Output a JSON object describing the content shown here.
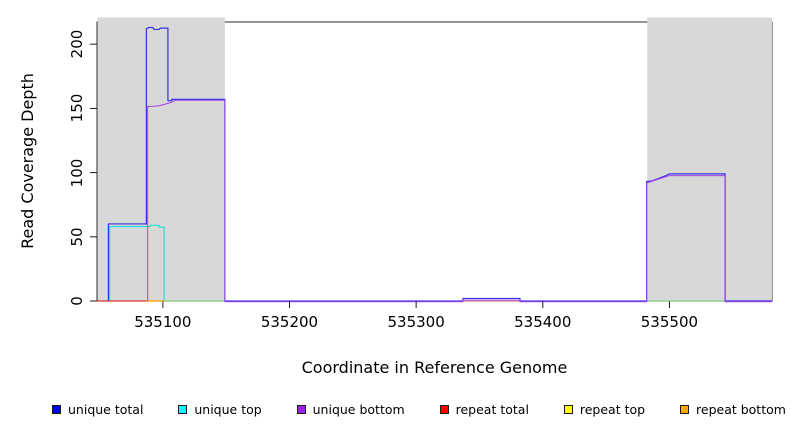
{
  "figure": {
    "x_axis_title": "Coordinate in Reference Genome",
    "y_axis_title": "Read Coverage Depth"
  },
  "chart_data": {
    "type": "line",
    "subtype": "step-coverage-profile",
    "title": "",
    "xlabel": "Coordinate in Reference Genome",
    "ylabel": "Read Coverage Depth",
    "xlim": [
      535048,
      535581
    ],
    "ylim": [
      0,
      220
    ],
    "x_ticks": [
      535100,
      535200,
      535300,
      535400,
      535500
    ],
    "y_ticks": [
      0,
      50,
      100,
      150,
      200
    ],
    "grid": false,
    "legend_position": "bottom",
    "highlight_regions": [
      {
        "from": 535048,
        "to": 535149,
        "color": "#d8d8d8"
      },
      {
        "from": 535482,
        "to": 535581,
        "color": "#d8d8d8"
      }
    ],
    "series": [
      {
        "name": "unique top",
        "color": "#17dede",
        "width": 1.1,
        "dy": 0,
        "z": 1,
        "points": [
          [
            535058,
            0
          ],
          [
            535058,
            58
          ],
          [
            535090,
            58
          ],
          [
            535090,
            59
          ],
          [
            535097,
            59
          ],
          [
            535097,
            57.5
          ],
          [
            535101,
            57.5
          ],
          [
            535101,
            0
          ],
          [
            535581,
            0
          ]
        ]
      },
      {
        "name": "repeat total",
        "color": "#ff0000",
        "depth": 0,
        "render": false,
        "points": [
          [
            535048,
            0
          ],
          [
            535581,
            0
          ]
        ]
      },
      {
        "name": "repeat top",
        "color": "#ffff00",
        "depth": 0,
        "render": false,
        "points": [
          [
            535048,
            0
          ],
          [
            535581,
            0
          ]
        ]
      },
      {
        "name": "repeat bottom",
        "color": "#ffa500",
        "depth": 0,
        "render": false,
        "points": [
          [
            535048,
            0
          ],
          [
            535581,
            0
          ]
        ]
      },
      {
        "name": "unique total",
        "color": "#3232e8",
        "width": 1.2,
        "dy": 0,
        "z": 3,
        "points": [
          [
            535057,
            0
          ],
          [
            535057,
            60
          ],
          [
            535087,
            60
          ],
          [
            535087,
            212
          ],
          [
            535089,
            213
          ],
          [
            535092,
            213
          ],
          [
            535093,
            211.5
          ],
          [
            535097,
            211.5
          ],
          [
            535098,
            212.5
          ],
          [
            535104,
            212.5
          ],
          [
            535104,
            156
          ],
          [
            535107,
            156
          ],
          [
            535107,
            157
          ],
          [
            535149,
            157
          ],
          [
            535149,
            0
          ],
          [
            535337,
            0
          ],
          [
            535337,
            2
          ],
          [
            535382,
            2
          ],
          [
            535382,
            0
          ],
          [
            535482,
            0
          ],
          [
            535482,
            93
          ],
          [
            535486,
            93.5
          ],
          [
            535489,
            94.5
          ],
          [
            535493,
            96
          ],
          [
            535497,
            97.5
          ],
          [
            535500,
            99
          ],
          [
            535544,
            99
          ],
          [
            535544,
            0
          ],
          [
            535581,
            0
          ]
        ]
      },
      {
        "name": "unique bottom",
        "color": "#a342ec",
        "width": 1.0,
        "dy": 0.8,
        "z": 4,
        "points": [
          [
            535088,
            0
          ],
          [
            535088,
            152
          ],
          [
            535096,
            152.5
          ],
          [
            535100,
            153.5
          ],
          [
            535104,
            154.5
          ],
          [
            535107,
            155.5
          ],
          [
            535110,
            157
          ],
          [
            535149,
            157
          ],
          [
            535149,
            0
          ],
          [
            535337,
            0
          ],
          [
            535337,
            1.3
          ],
          [
            535382,
            1.3
          ],
          [
            535382,
            0
          ],
          [
            535482,
            0
          ],
          [
            535482,
            92.5
          ],
          [
            535500,
            98.3
          ],
          [
            535544,
            98.3
          ],
          [
            535544,
            0
          ],
          [
            535581,
            0
          ]
        ]
      }
    ],
    "baseline_segments": [
      {
        "from": 535048,
        "to": 535087,
        "color": "#e03030",
        "meaning": "repeat total visible at depth 0"
      },
      {
        "from": 535087,
        "to": 535101,
        "color": "#ff9a00",
        "meaning": "repeat bottom visible at depth 0"
      },
      {
        "from": 535101,
        "to": 535149,
        "color": "#7ccc7c",
        "meaning": "overlapped zero-depth lines (green)"
      },
      {
        "from": 535337,
        "to": 535382,
        "color": "#f08a8a",
        "meaning": "red zero line under small bump"
      },
      {
        "from": 535482,
        "to": 535544,
        "color": "#7ccc7c",
        "meaning": "overlapped zero-depth lines (green)"
      }
    ]
  },
  "legend": {
    "items": [
      {
        "label": "unique total",
        "color": "#0000ff"
      },
      {
        "label": "unique top",
        "color": "#00ffff"
      },
      {
        "label": "unique bottom",
        "color": "#a020f0"
      },
      {
        "label": "repeat total",
        "color": "#ff0000"
      },
      {
        "label": "repeat top",
        "color": "#ffff00"
      },
      {
        "label": "repeat bottom",
        "color": "#ffa500"
      }
    ]
  }
}
